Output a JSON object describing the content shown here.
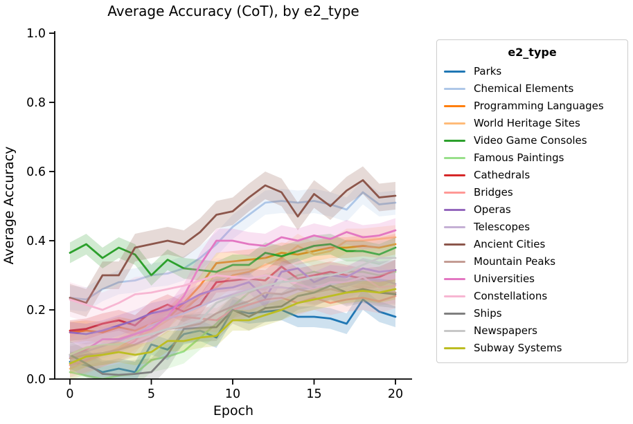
{
  "chart_data": {
    "type": "line",
    "title": "Average Accuracy (CoT), by e2_type",
    "xlabel": "Epoch",
    "ylabel": "Average Accuracy",
    "legend_title": "e2_type",
    "legend_position": "right-outside",
    "grid": false,
    "x": [
      0,
      1,
      2,
      3,
      4,
      5,
      6,
      7,
      8,
      9,
      10,
      11,
      12,
      13,
      14,
      15,
      16,
      17,
      18,
      19,
      20
    ],
    "xticks": [
      "0",
      "5",
      "10",
      "15",
      "20"
    ],
    "yticks": [
      "0.0",
      "0.2",
      "0.4",
      "0.6",
      "0.8",
      "1.0"
    ],
    "xlim": [
      -1,
      21
    ],
    "ylim": [
      0.0,
      1.0
    ],
    "band_note": "each series has a shaded confidence band of +/- band around the line",
    "series": [
      {
        "name": "Parks",
        "color": "#1f77b4",
        "band": 0.03,
        "values": [
          0.05,
          0.04,
          0.02,
          0.03,
          0.02,
          0.1,
          0.085,
          0.13,
          0.14,
          0.12,
          0.2,
          0.19,
          0.195,
          0.2,
          0.18,
          0.18,
          0.175,
          0.16,
          0.23,
          0.195,
          0.18
        ]
      },
      {
        "name": "Chemical Elements",
        "color": "#aec7e8",
        "band": 0.035,
        "values": [
          0.235,
          0.23,
          0.26,
          0.28,
          0.285,
          0.3,
          0.305,
          0.32,
          0.35,
          0.39,
          0.44,
          0.475,
          0.51,
          0.515,
          0.51,
          0.515,
          0.505,
          0.49,
          0.54,
          0.505,
          0.51
        ]
      },
      {
        "name": "Programming Languages",
        "color": "#ff7f0e",
        "band": 0.03,
        "values": [
          0.135,
          0.14,
          0.135,
          0.15,
          0.14,
          0.16,
          0.175,
          0.22,
          0.27,
          0.335,
          0.34,
          0.345,
          0.35,
          0.365,
          0.36,
          0.37,
          0.38,
          0.38,
          0.385,
          0.38,
          0.39
        ]
      },
      {
        "name": "World Heritage Sites",
        "color": "#ffbb78",
        "band": 0.035,
        "values": [
          0.03,
          0.05,
          0.07,
          0.09,
          0.12,
          0.14,
          0.17,
          0.2,
          0.24,
          0.265,
          0.3,
          0.31,
          0.33,
          0.35,
          0.385,
          0.36,
          0.37,
          0.4,
          0.4,
          0.405,
          0.41
        ]
      },
      {
        "name": "Video Game Consoles",
        "color": "#2ca02c",
        "band": 0.03,
        "values": [
          0.365,
          0.39,
          0.35,
          0.38,
          0.36,
          0.3,
          0.345,
          0.32,
          0.315,
          0.31,
          0.33,
          0.33,
          0.365,
          0.355,
          0.37,
          0.385,
          0.39,
          0.37,
          0.37,
          0.36,
          0.38
        ]
      },
      {
        "name": "Famous Paintings",
        "color": "#98df8a",
        "band": 0.035,
        "values": [
          0.02,
          0.01,
          0.0,
          0.01,
          0.015,
          0.055,
          0.065,
          0.08,
          0.12,
          0.16,
          0.21,
          0.25,
          0.27,
          0.28,
          0.3,
          0.31,
          0.3,
          0.31,
          0.31,
          0.3,
          0.31
        ]
      },
      {
        "name": "Cathedrals",
        "color": "#d62728",
        "band": 0.03,
        "values": [
          0.14,
          0.145,
          0.16,
          0.17,
          0.155,
          0.195,
          0.215,
          0.195,
          0.215,
          0.28,
          0.285,
          0.29,
          0.285,
          0.325,
          0.29,
          0.3,
          0.31,
          0.3,
          0.29,
          0.295,
          0.315
        ]
      },
      {
        "name": "Bridges",
        "color": "#ff9896",
        "band": 0.035,
        "values": [
          0.04,
          0.055,
          0.07,
          0.085,
          0.11,
          0.165,
          0.18,
          0.18,
          0.175,
          0.17,
          0.2,
          0.215,
          0.23,
          0.235,
          0.22,
          0.235,
          0.22,
          0.23,
          0.235,
          0.225,
          0.24
        ]
      },
      {
        "name": "Operas",
        "color": "#9467bd",
        "band": 0.03,
        "values": [
          0.135,
          0.13,
          0.14,
          0.155,
          0.17,
          0.19,
          0.2,
          0.22,
          0.245,
          0.26,
          0.265,
          0.28,
          0.235,
          0.31,
          0.32,
          0.28,
          0.3,
          0.295,
          0.32,
          0.31,
          0.315
        ]
      },
      {
        "name": "Telescopes",
        "color": "#c5b0d5",
        "band": 0.035,
        "values": [
          0.065,
          0.08,
          0.095,
          0.11,
          0.13,
          0.155,
          0.175,
          0.19,
          0.21,
          0.23,
          0.245,
          0.26,
          0.265,
          0.265,
          0.26,
          0.265,
          0.26,
          0.27,
          0.285,
          0.29,
          0.275
        ]
      },
      {
        "name": "Ancient Cities",
        "color": "#8c564b",
        "band": 0.04,
        "values": [
          0.235,
          0.22,
          0.3,
          0.3,
          0.38,
          0.39,
          0.4,
          0.39,
          0.425,
          0.475,
          0.485,
          0.525,
          0.56,
          0.54,
          0.47,
          0.535,
          0.5,
          0.545,
          0.575,
          0.525,
          0.53
        ]
      },
      {
        "name": "Mountain Peaks",
        "color": "#c49c94",
        "band": 0.035,
        "values": [
          0.06,
          0.07,
          0.075,
          0.085,
          0.1,
          0.12,
          0.145,
          0.15,
          0.16,
          0.19,
          0.21,
          0.225,
          0.25,
          0.245,
          0.26,
          0.25,
          0.26,
          0.25,
          0.26,
          0.25,
          0.25
        ]
      },
      {
        "name": "Universities",
        "color": "#e377c2",
        "band": 0.035,
        "values": [
          0.07,
          0.085,
          0.115,
          0.115,
          0.13,
          0.145,
          0.18,
          0.24,
          0.33,
          0.4,
          0.4,
          0.39,
          0.385,
          0.41,
          0.4,
          0.415,
          0.405,
          0.425,
          0.41,
          0.415,
          0.43
        ]
      },
      {
        "name": "Constellations",
        "color": "#f7b6d2",
        "band": 0.05,
        "values": [
          0.23,
          0.215,
          0.2,
          0.22,
          0.245,
          0.25,
          0.26,
          0.27,
          0.285,
          0.3,
          0.295,
          0.29,
          0.3,
          0.29,
          0.275,
          0.26,
          0.28,
          0.28,
          0.295,
          0.265,
          0.27
        ]
      },
      {
        "name": "Ships",
        "color": "#7f7f7f",
        "band": 0.04,
        "values": [
          0.07,
          0.045,
          0.015,
          0.012,
          0.015,
          0.02,
          0.07,
          0.145,
          0.148,
          0.15,
          0.2,
          0.18,
          0.205,
          0.21,
          0.24,
          0.25,
          0.27,
          0.25,
          0.26,
          0.25,
          0.245
        ]
      },
      {
        "name": "Newspapers",
        "color": "#c7c7c7",
        "band": 0.05,
        "values": [
          0.07,
          0.09,
          0.1,
          0.1,
          0.12,
          0.13,
          0.145,
          0.155,
          0.17,
          0.22,
          0.24,
          0.255,
          0.27,
          0.28,
          0.285,
          0.295,
          0.3,
          0.31,
          0.33,
          0.35,
          0.35
        ]
      },
      {
        "name": "Subway Systems",
        "color": "#bcbd22",
        "band": 0.03,
        "values": [
          0.045,
          0.065,
          0.07,
          0.078,
          0.07,
          0.078,
          0.11,
          0.11,
          0.12,
          0.125,
          0.17,
          0.17,
          0.185,
          0.2,
          0.22,
          0.23,
          0.24,
          0.25,
          0.255,
          0.25,
          0.26
        ]
      }
    ]
  }
}
